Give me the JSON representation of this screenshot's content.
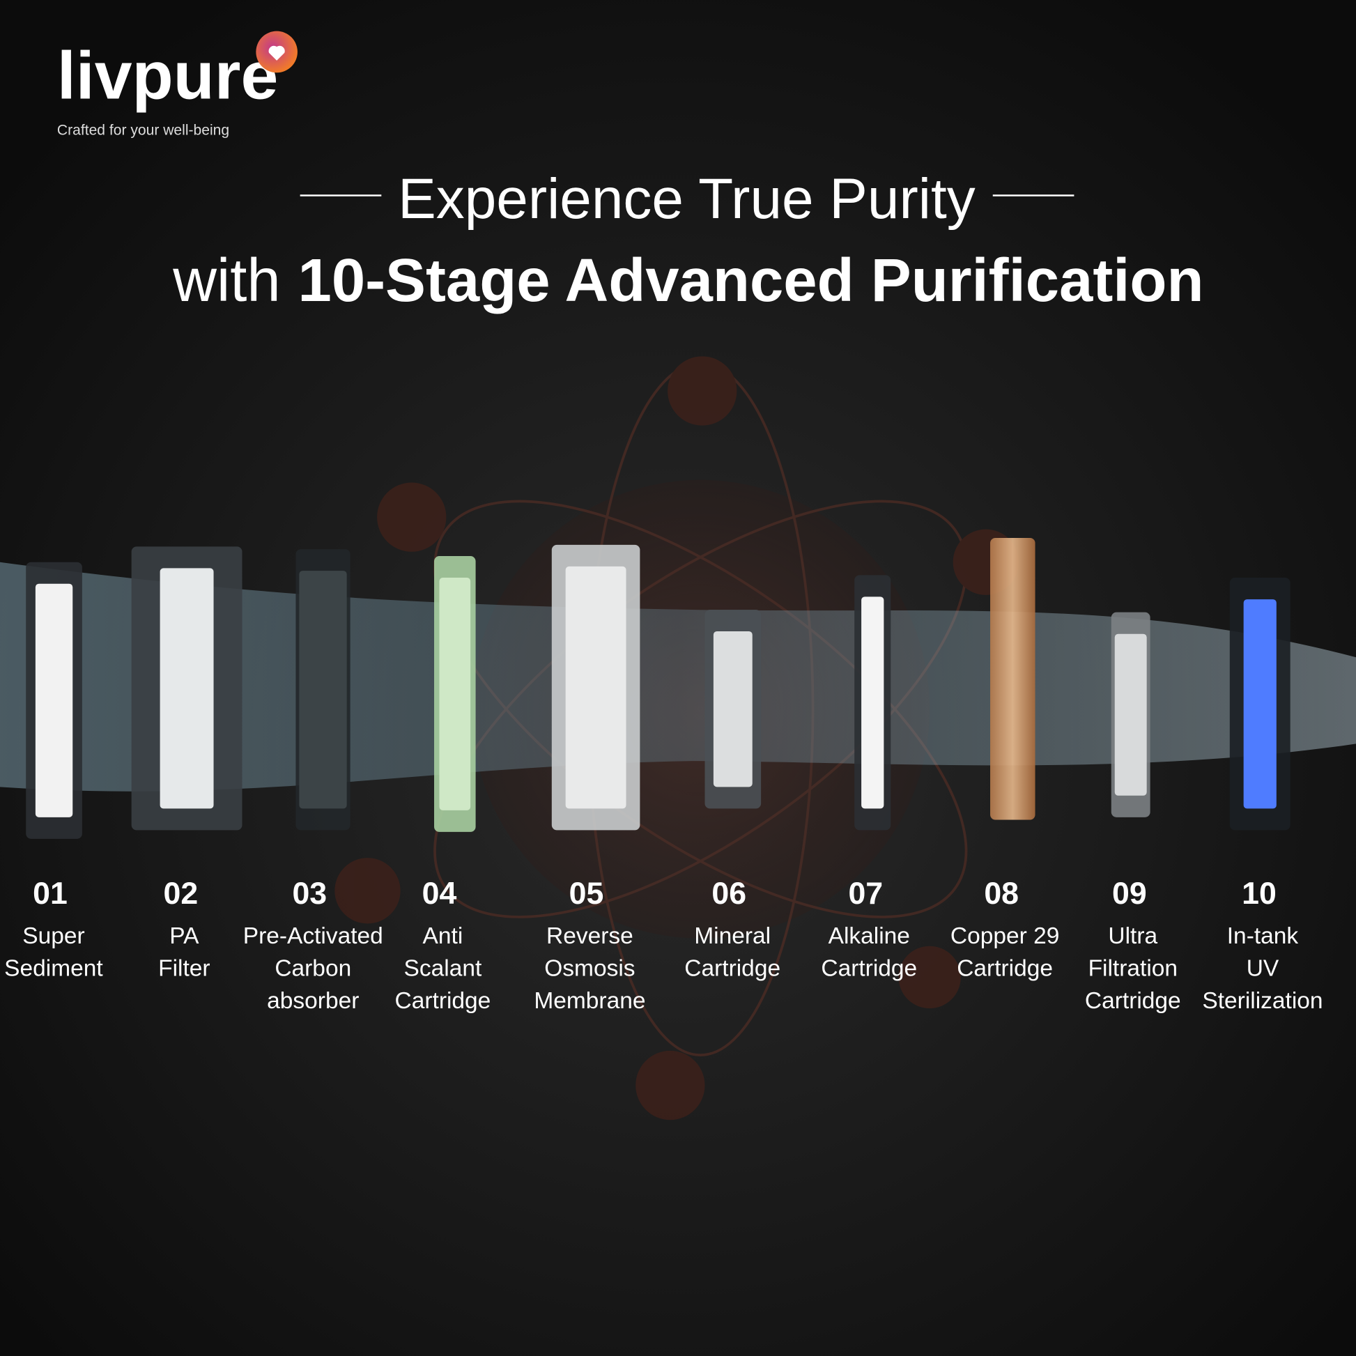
{
  "brand": {
    "name": "livpure",
    "tagline": "Crafted for your well-being"
  },
  "headline": {
    "line1": "Experience True Purity",
    "line2_prefix": "with",
    "line2_bold": "10-Stage Advanced Purification"
  },
  "stages": [
    {
      "number": "01",
      "label": [
        "Super",
        "Sediment"
      ]
    },
    {
      "number": "02",
      "label": [
        "PA",
        "Filter"
      ]
    },
    {
      "number": "03",
      "label": [
        "Pre-Activated",
        "Carbon",
        "absorber"
      ]
    },
    {
      "number": "04",
      "label": [
        "Anti",
        "Scalant",
        "Cartridge"
      ]
    },
    {
      "number": "05",
      "label": [
        "Reverse",
        "Osmosis",
        "Membrane"
      ]
    },
    {
      "number": "06",
      "label": [
        "Mineral",
        "Cartridge"
      ]
    },
    {
      "number": "07",
      "label": [
        "Alkaline",
        "Cartridge"
      ]
    },
    {
      "number": "08",
      "label": [
        "Copper 29",
        "Cartridge"
      ]
    },
    {
      "number": "09",
      "label": [
        "Ultra",
        "Filtration",
        "Cartridge"
      ]
    },
    {
      "number": "10",
      "label": [
        "In-tank",
        "UV",
        "Sterilization"
      ]
    }
  ]
}
